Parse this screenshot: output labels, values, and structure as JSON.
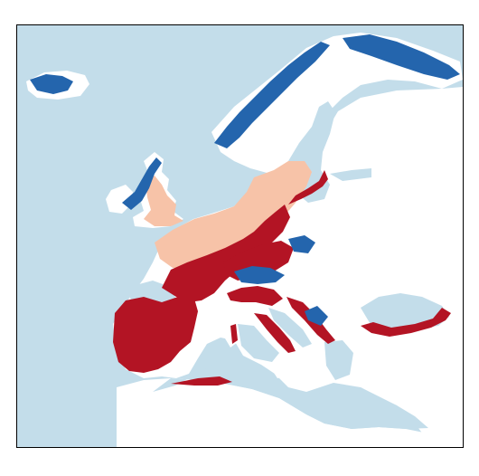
{
  "map": {
    "legend": [],
    "colors": {
      "water": "#c3ddea",
      "land": "#ffffff",
      "dark_red": "#b31424",
      "light_salmon": "#f7c3a8",
      "dark_blue": "#2465ad",
      "frame": "#000000"
    },
    "classes": [
      {
        "id": "dark-red-class",
        "color_key": "dark_red",
        "description_visible": ""
      },
      {
        "id": "light-salmon-class",
        "color_key": "light_salmon",
        "description_visible": ""
      },
      {
        "id": "dark-blue-class",
        "color_key": "dark_blue",
        "description_visible": ""
      }
    ]
  }
}
